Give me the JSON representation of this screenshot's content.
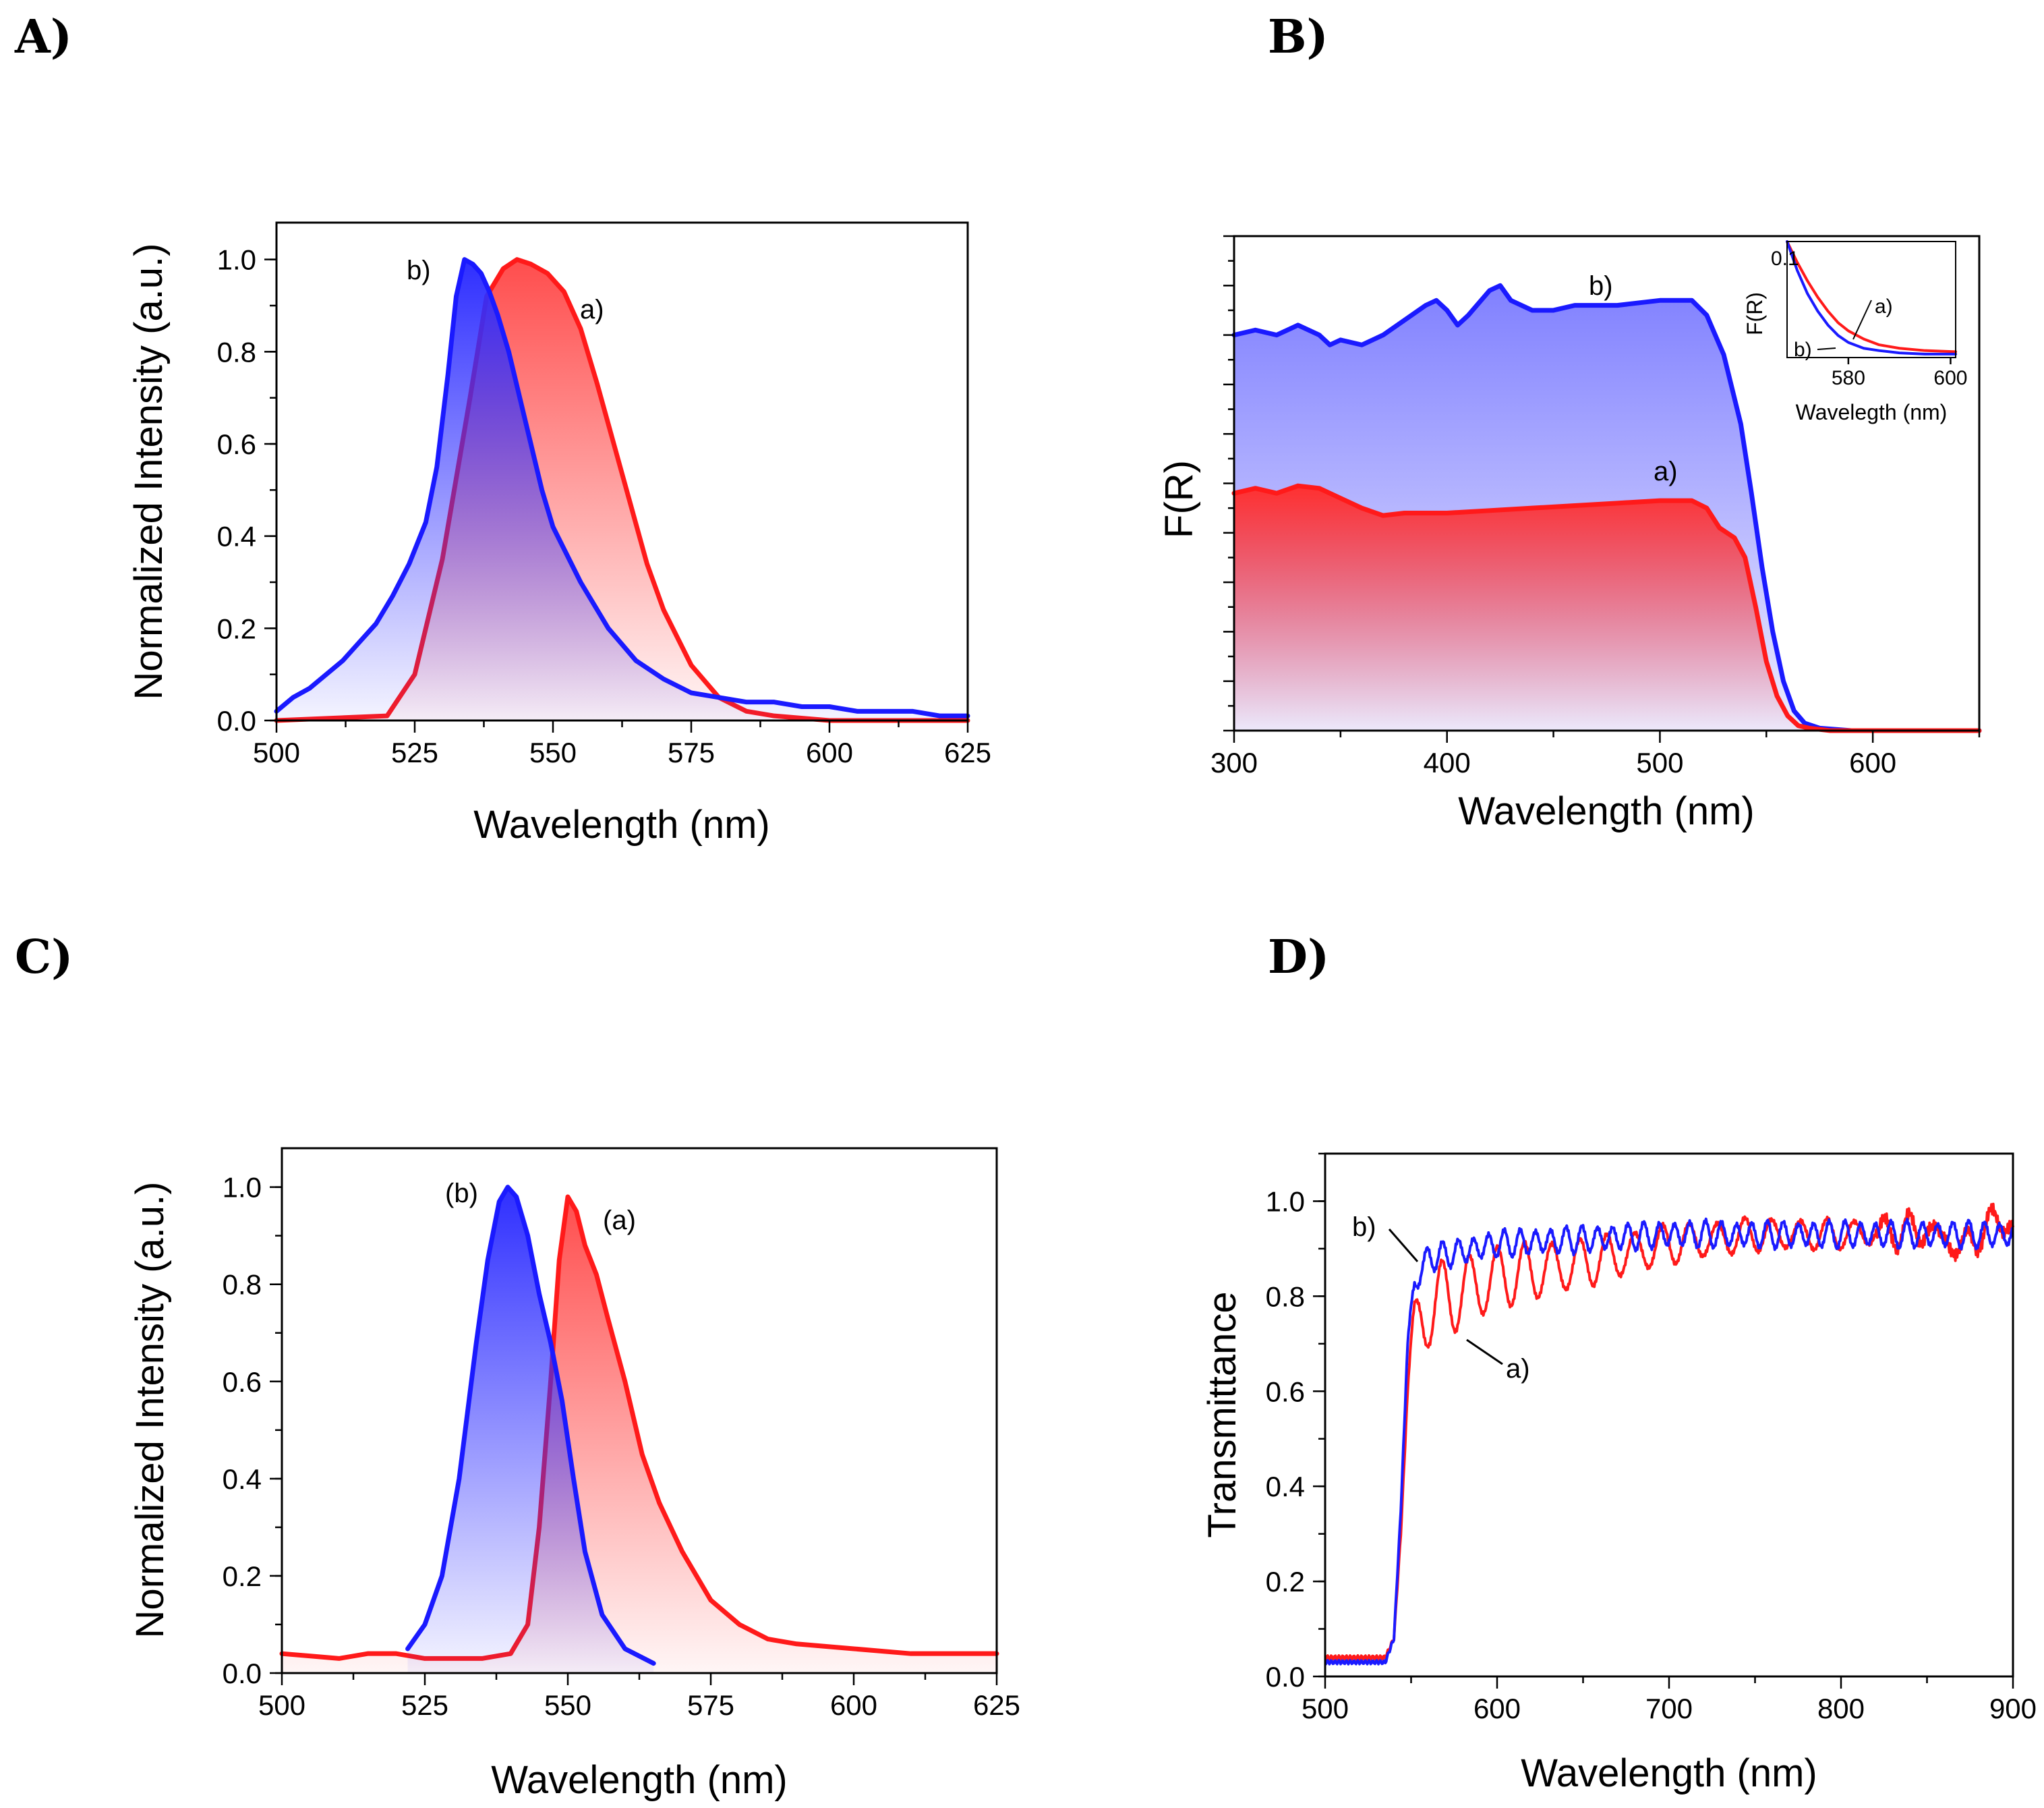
{
  "colors": {
    "red": "#ff1a1a",
    "blue": "#1a1aff"
  },
  "chart_data": [
    {
      "id": "A",
      "panel": "A)",
      "type": "area",
      "xlabel": "Wavelength (nm)",
      "ylabel": "Normalized Intensity (a.u.)",
      "xlim": [
        500,
        625
      ],
      "ylim": [
        0,
        1.08
      ],
      "xticks": [
        500,
        525,
        550,
        575,
        600,
        625
      ],
      "xtick_labels": [
        "500",
        "525",
        "550",
        "575",
        "600",
        "625"
      ],
      "yticks": [
        0,
        0.2,
        0.4,
        0.6,
        0.8,
        1.0
      ],
      "ytick_labels": [
        "0.0",
        "0.2",
        "0.4",
        "0.6",
        "0.8",
        "1.0"
      ],
      "series": [
        {
          "name": "a)",
          "color": "#ff1a1a",
          "x": [
            500,
            520,
            525,
            530,
            535,
            538,
            541,
            543.5,
            546,
            549,
            552,
            555,
            558,
            561,
            564,
            567,
            570,
            575,
            580,
            585,
            590,
            600,
            610,
            625
          ],
          "y": [
            0,
            0.01,
            0.1,
            0.35,
            0.7,
            0.92,
            0.98,
            1.0,
            0.99,
            0.97,
            0.93,
            0.85,
            0.73,
            0.6,
            0.47,
            0.34,
            0.24,
            0.12,
            0.05,
            0.02,
            0.01,
            0,
            0,
            0
          ]
        },
        {
          "name": "b)",
          "color": "#1a1aff",
          "x": [
            500,
            503,
            506,
            509,
            512,
            515,
            518,
            521,
            524,
            527,
            529,
            531,
            532.5,
            534,
            535.5,
            537,
            538.5,
            540,
            542,
            544,
            546,
            548,
            550,
            555,
            560,
            565,
            570,
            575,
            580,
            585,
            590,
            595,
            600,
            605,
            610,
            615,
            620,
            625
          ],
          "y": [
            0.02,
            0.05,
            0.07,
            0.1,
            0.13,
            0.17,
            0.21,
            0.27,
            0.34,
            0.43,
            0.55,
            0.75,
            0.92,
            1.0,
            0.99,
            0.97,
            0.93,
            0.88,
            0.8,
            0.7,
            0.6,
            0.5,
            0.42,
            0.3,
            0.2,
            0.13,
            0.09,
            0.06,
            0.05,
            0.04,
            0.04,
            0.03,
            0.03,
            0.02,
            0.02,
            0.02,
            0.01,
            0.01
          ]
        }
      ]
    },
    {
      "id": "B",
      "panel": "B)",
      "type": "area",
      "xlabel": "Wavelength (nm)",
      "ylabel": "F(R)",
      "xlim": [
        300,
        650
      ],
      "ylim": [
        0,
        1.0
      ],
      "xticks": [
        300,
        400,
        500,
        600
      ],
      "xtick_labels": [
        "300",
        "400",
        "500",
        "600"
      ],
      "series": [
        {
          "name": "a)",
          "color": "#ff1a1a",
          "x": [
            300,
            310,
            320,
            330,
            340,
            350,
            360,
            370,
            380,
            400,
            420,
            440,
            460,
            480,
            500,
            515,
            522,
            528,
            535,
            540,
            545,
            550,
            555,
            560,
            565,
            570,
            580,
            600,
            650
          ],
          "y": [
            0.48,
            0.49,
            0.48,
            0.495,
            0.49,
            0.47,
            0.45,
            0.435,
            0.44,
            0.44,
            0.445,
            0.45,
            0.455,
            0.46,
            0.465,
            0.465,
            0.45,
            0.41,
            0.39,
            0.35,
            0.25,
            0.14,
            0.07,
            0.03,
            0.01,
            0.005,
            0,
            0,
            0
          ]
        },
        {
          "name": "b)",
          "color": "#1a1aff",
          "x": [
            300,
            310,
            320,
            330,
            340,
            345,
            350,
            360,
            370,
            380,
            390,
            395,
            400,
            405,
            410,
            420,
            425,
            430,
            440,
            450,
            460,
            470,
            480,
            500,
            515,
            522,
            530,
            538,
            543,
            548,
            553,
            558,
            563,
            568,
            575,
            590,
            650
          ],
          "y": [
            0.8,
            0.81,
            0.8,
            0.82,
            0.8,
            0.78,
            0.79,
            0.78,
            0.8,
            0.83,
            0.86,
            0.87,
            0.85,
            0.82,
            0.84,
            0.89,
            0.9,
            0.87,
            0.85,
            0.85,
            0.86,
            0.86,
            0.86,
            0.87,
            0.87,
            0.84,
            0.76,
            0.62,
            0.48,
            0.33,
            0.2,
            0.1,
            0.04,
            0.015,
            0.005,
            0,
            0
          ]
        }
      ],
      "annotations": [
        {
          "text": "b)",
          "x": 490,
          "y": 0.92
        },
        {
          "text": "a)",
          "x": 488,
          "y": 0.52
        }
      ],
      "inset": {
        "xlabel": "Wavelegth (nm)",
        "ylabel": "F(R)",
        "xlim": [
          568,
          601
        ],
        "ylim": [
          0,
          0.1
        ],
        "xticks": [
          580,
          600
        ],
        "xtick_labels": [
          "580",
          "600"
        ],
        "ytick_label": "0.1",
        "series": [
          {
            "name": "a)",
            "color": "#ff1a1a",
            "x": [
              568,
              570,
              572,
              574,
              576,
              578,
              580,
              583,
              586,
              590,
              595,
              601
            ],
            "y": [
              0.1,
              0.082,
              0.066,
              0.052,
              0.04,
              0.03,
              0.023,
              0.016,
              0.011,
              0.008,
              0.006,
              0.005
            ]
          },
          {
            "name": "b)",
            "color": "#1a1aff",
            "x": [
              568,
              570,
              572,
              574,
              576,
              578,
              580,
              583,
              586,
              590,
              595,
              601
            ],
            "y": [
              0.1,
              0.075,
              0.055,
              0.04,
              0.028,
              0.019,
              0.013,
              0.008,
              0.006,
              0.004,
              0.003,
              0.003
            ]
          }
        ],
        "annotations": [
          {
            "text": "a)",
            "x": 588,
            "y": 0.042
          },
          {
            "text": "b)",
            "x": 571,
            "y": 0.006
          }
        ]
      }
    },
    {
      "id": "C",
      "panel": "C)",
      "type": "area",
      "xlabel": "Wavelength (nm)",
      "ylabel": "Normalized Intensity (a.u.)",
      "xlim": [
        500,
        625
      ],
      "ylim": [
        0,
        1.08
      ],
      "xticks": [
        500,
        525,
        550,
        575,
        600,
        625
      ],
      "xtick_labels": [
        "500",
        "525",
        "550",
        "575",
        "600",
        "625"
      ],
      "yticks": [
        0,
        0.2,
        0.4,
        0.6,
        0.8,
        1.0
      ],
      "ytick_labels": [
        "0.0",
        "0.2",
        "0.4",
        "0.6",
        "0.8",
        "1.0"
      ],
      "series": [
        {
          "name": "(a)",
          "color": "#ff1a1a",
          "x": [
            500,
            505,
            510,
            515,
            520,
            525,
            530,
            535,
            540,
            543,
            545,
            547,
            548.5,
            550,
            551.5,
            553,
            555,
            557,
            560,
            563,
            566,
            570,
            575,
            580,
            585,
            590,
            600,
            610,
            625
          ],
          "y": [
            0.04,
            0.035,
            0.03,
            0.04,
            0.04,
            0.03,
            0.03,
            0.03,
            0.04,
            0.1,
            0.3,
            0.6,
            0.85,
            0.98,
            0.95,
            0.88,
            0.82,
            0.73,
            0.6,
            0.45,
            0.35,
            0.25,
            0.15,
            0.1,
            0.07,
            0.06,
            0.05,
            0.04,
            0.04
          ]
        },
        {
          "name": "(b)",
          "color": "#1a1aff",
          "x": [
            522,
            525,
            528,
            531,
            534,
            536,
            538,
            539.5,
            541,
            543,
            545,
            547,
            549,
            551,
            553,
            556,
            560,
            565
          ],
          "y": [
            0.05,
            0.1,
            0.2,
            0.4,
            0.68,
            0.85,
            0.97,
            1.0,
            0.98,
            0.9,
            0.78,
            0.68,
            0.56,
            0.4,
            0.25,
            0.12,
            0.05,
            0.02
          ]
        }
      ]
    },
    {
      "id": "D",
      "panel": "D)",
      "type": "line",
      "xlabel": "Wavelength (nm)",
      "ylabel": "Transmittance",
      "xlim": [
        500,
        900
      ],
      "ylim": [
        0,
        1.1
      ],
      "xticks": [
        500,
        600,
        700,
        800,
        900
      ],
      "xtick_labels": [
        "500",
        "600",
        "700",
        "800",
        "900"
      ],
      "yticks": [
        0,
        0.2,
        0.4,
        0.6,
        0.8,
        1.0
      ],
      "ytick_labels": [
        "0.0",
        "0.2",
        "0.4",
        "0.6",
        "0.8",
        "1.0"
      ],
      "series": [
        {
          "name": "a)",
          "color": "#ff1a1a",
          "x": [
            500,
            520,
            535,
            540,
            544,
            548,
            552,
            556,
            560,
            600,
            650,
            700,
            750,
            800,
            850,
            870,
            880,
            890,
            900
          ],
          "y": [
            0.04,
            0.04,
            0.04,
            0.08,
            0.3,
            0.6,
            0.7,
            0.75,
            0.78,
            0.84,
            0.87,
            0.91,
            0.93,
            0.93,
            0.94,
            0.9,
            0.93,
            0.96,
            0.95
          ]
        },
        {
          "name": "b)",
          "color": "#1a1aff",
          "x": [
            500,
            520,
            535,
            540,
            544,
            548,
            552,
            556,
            560,
            600,
            650,
            700,
            750,
            800,
            850,
            900
          ],
          "y": [
            0.03,
            0.03,
            0.03,
            0.08,
            0.35,
            0.7,
            0.82,
            0.86,
            0.88,
            0.91,
            0.92,
            0.93,
            0.93,
            0.93,
            0.93,
            0.93
          ]
        }
      ],
      "annotations": [
        {
          "text": "b)",
          "x": 530,
          "y": 0.97
        },
        {
          "text": "a)",
          "x": 590,
          "y": 0.67
        }
      ]
    }
  ]
}
